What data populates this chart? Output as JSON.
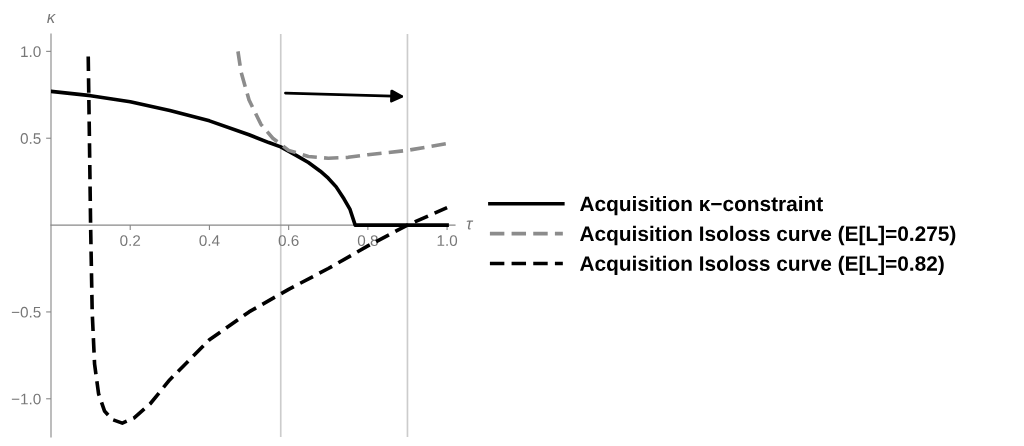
{
  "chart_data": {
    "type": "line",
    "xlabel": "τ",
    "ylabel": "κ",
    "xlim": [
      0,
      1.02
    ],
    "ylim": [
      -1.22,
      1.1
    ],
    "xticks": [
      0.2,
      0.4,
      0.6,
      0.8,
      {
        "value": 1,
        "label": "1.0"
      }
    ],
    "yticks": [
      {
        "value": -1,
        "label": "−1.0"
      },
      {
        "value": -0.5,
        "label": "−0.5"
      },
      0.5,
      {
        "value": 1,
        "label": "1.0"
      }
    ],
    "grid": false,
    "legend": "right",
    "marker": "none",
    "ref_lines": [
      {
        "axis": "x",
        "value": 0.58,
        "color": "#cccccc"
      },
      {
        "axis": "x",
        "value": 0.9,
        "color": "#cccccc"
      }
    ],
    "series": [
      {
        "name": "Acquisition κ−constraint",
        "color": "#000000",
        "line_style": "solid",
        "x": [
          0,
          0.1,
          0.2,
          0.3,
          0.4,
          0.5,
          0.55,
          0.58,
          0.62,
          0.65,
          0.68,
          0.7,
          0.72,
          0.74,
          0.755,
          0.768,
          0.8,
          0.9,
          1.0
        ],
        "values": [
          0.77,
          0.745,
          0.71,
          0.66,
          0.6,
          0.52,
          0.475,
          0.45,
          0.4,
          0.36,
          0.31,
          0.27,
          0.22,
          0.15,
          0.09,
          0.0,
          0.0,
          0.0,
          0.0
        ]
      },
      {
        "name": "Acquisition Isoloss curve (E[L]=0.275)",
        "color": "#8c8c8c",
        "line_style": "dashed",
        "x": [
          0.472,
          0.48,
          0.5,
          0.53,
          0.56,
          0.6,
          0.65,
          0.7,
          0.75,
          0.8,
          0.9,
          1.0
        ],
        "values": [
          1.0,
          0.88,
          0.72,
          0.58,
          0.5,
          0.43,
          0.395,
          0.385,
          0.39,
          0.405,
          0.43,
          0.47
        ]
      },
      {
        "name": "Acquisition Isoloss curve (E[L]=0.82)",
        "color": "#000000",
        "line_style": "dashed",
        "x": [
          0.094,
          0.097,
          0.1,
          0.104,
          0.11,
          0.12,
          0.135,
          0.155,
          0.18,
          0.21,
          0.25,
          0.3,
          0.4,
          0.5,
          0.6,
          0.7,
          0.8,
          0.9,
          1.0
        ],
        "values": [
          0.97,
          0.5,
          0.0,
          -0.5,
          -0.8,
          -0.97,
          -1.07,
          -1.12,
          -1.14,
          -1.11,
          -1.03,
          -0.89,
          -0.66,
          -0.5,
          -0.37,
          -0.25,
          -0.12,
          0.0,
          0.1
        ]
      }
    ]
  }
}
